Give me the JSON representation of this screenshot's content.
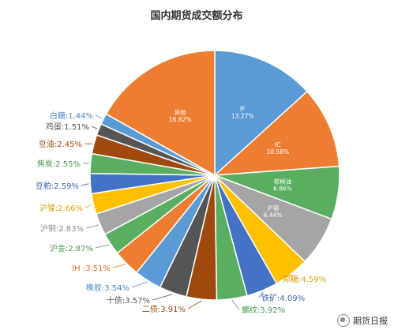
{
  "watermark": "期货日报",
  "chart_data": {
    "type": "pie",
    "title": "国内期货成交额分布",
    "slices": [
      {
        "name": "IF",
        "value": 13.27,
        "label": "13.27%",
        "color": "#5b9bd5",
        "inside": true
      },
      {
        "name": "IC",
        "value": 10.58,
        "label": "10.58%",
        "color": "#ed7d31",
        "inside": true
      },
      {
        "name": "棕榈油",
        "value": 6.86,
        "label": "6.86%",
        "color": "#5aae61",
        "inside": true
      },
      {
        "name": "沪银",
        "value": 6.44,
        "label": "6.44%",
        "color": "#a5a5a5",
        "inside": true
      },
      {
        "name": "郑糖",
        "value": 4.59,
        "label": "郑糖:4.59%",
        "color": "#ffc000",
        "inside": false,
        "labelColor": "#e0a000"
      },
      {
        "name": "铁矿",
        "value": 4.09,
        "label": "铁矿:4.09%",
        "color": "#4472c4",
        "inside": false,
        "labelColor": "#3a62b0"
      },
      {
        "name": "螺纹",
        "value": 3.92,
        "label": "螺纹:3.92%",
        "color": "#5aae61",
        "inside": false,
        "labelColor": "#4a9a50"
      },
      {
        "name": "二债",
        "value": 3.91,
        "label": "二债:3.91%",
        "color": "#9e4a0e",
        "inside": false,
        "labelColor": "#9e4a0e"
      },
      {
        "name": "十债",
        "value": 3.57,
        "label": "十债:3.57%",
        "color": "#555555",
        "inside": false,
        "labelColor": "#555555"
      },
      {
        "name": "橡胶",
        "value": 3.54,
        "label": "橡胶:3.54%",
        "color": "#5b9bd5",
        "inside": false,
        "labelColor": "#4a8ac4"
      },
      {
        "name": "IH",
        "value": 3.51,
        "label": "IH :3.51%",
        "color": "#ed7d31",
        "inside": false,
        "labelColor": "#e06c20"
      },
      {
        "name": "沪金",
        "value": 2.87,
        "label": "沪金:2.87%",
        "color": "#5aae61",
        "inside": false,
        "labelColor": "#4a9a50"
      },
      {
        "name": "沪铜",
        "value": 2.83,
        "label": "沪铜:2.83%",
        "color": "#a5a5a5",
        "inside": false,
        "labelColor": "#888888"
      },
      {
        "name": "沪镍",
        "value": 2.66,
        "label": "沪镍:2.66%",
        "color": "#ffc000",
        "inside": false,
        "labelColor": "#e0a000"
      },
      {
        "name": "豆粕",
        "value": 2.59,
        "label": "豆粕:2.59%",
        "color": "#4472c4",
        "inside": false,
        "labelColor": "#3a62b0"
      },
      {
        "name": "焦炭",
        "value": 2.55,
        "label": "焦炭:2.55%",
        "color": "#5aae61",
        "inside": false,
        "labelColor": "#4a9a50"
      },
      {
        "name": "豆油",
        "value": 2.45,
        "label": "豆油:2.45%",
        "color": "#9e4a0e",
        "inside": false,
        "labelColor": "#9e4a0e"
      },
      {
        "name": "鸡蛋",
        "value": 1.51,
        "label": "鸡蛋:1.51%",
        "color": "#555555",
        "inside": false,
        "labelColor": "#555555"
      },
      {
        "name": "白糖",
        "value": 1.44,
        "label": "白糖:1.44%",
        "color": "#5b9bd5",
        "inside": false,
        "labelColor": "#4a8ac4"
      },
      {
        "name": "其他",
        "value": 16.82,
        "label": "16.82%",
        "color": "#ed7d31",
        "inside": true
      }
    ]
  }
}
